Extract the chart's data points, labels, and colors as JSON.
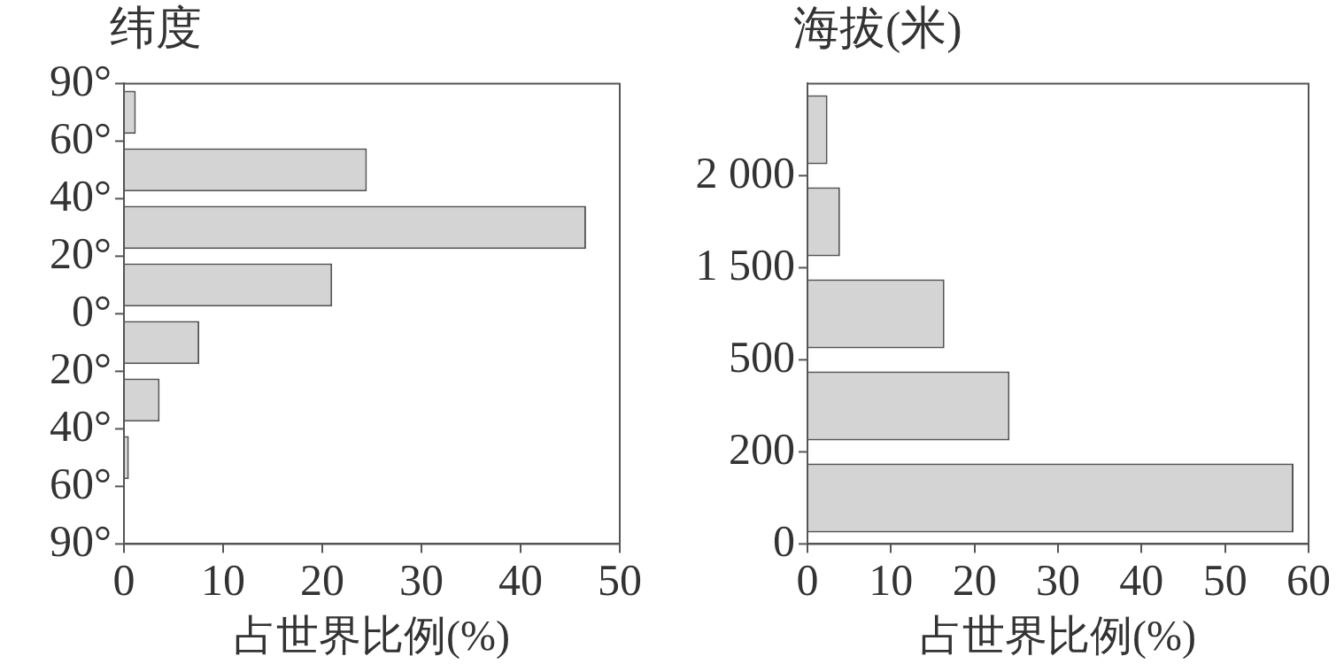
{
  "chart_data": [
    {
      "type": "bar",
      "orientation": "horizontal",
      "title": "纬度",
      "xlabel": "占世界比例(%)",
      "color": "#d4d4d4",
      "categories": [
        null,
        null,
        null,
        null,
        null,
        null,
        null,
        null
      ],
      "values": [
        1.2,
        24.5,
        46.6,
        21,
        7.6,
        3.6,
        0.5,
        0
      ],
      "xlim": [
        0,
        50
      ],
      "xticks": [
        0,
        10,
        20,
        30,
        40,
        50
      ],
      "annotations": [
        "90°",
        "60°",
        "40°",
        "20°",
        "0°",
        "20°",
        "40°",
        "60°",
        "90°"
      ]
    },
    {
      "type": "bar",
      "orientation": "horizontal",
      "title": "海拔(米)",
      "xlabel": "占世界比例(%)",
      "color": "#d4d4d4",
      "categories": [
        null,
        null,
        null,
        null,
        null
      ],
      "values": [
        2.4,
        3.9,
        16.4,
        24.2,
        58.2
      ],
      "xlim": [
        0,
        60
      ],
      "xticks": [
        0,
        10,
        20,
        30,
        40,
        50,
        60
      ],
      "annotations": [
        "2 000",
        "1 500",
        "500",
        "200",
        "0"
      ]
    }
  ]
}
